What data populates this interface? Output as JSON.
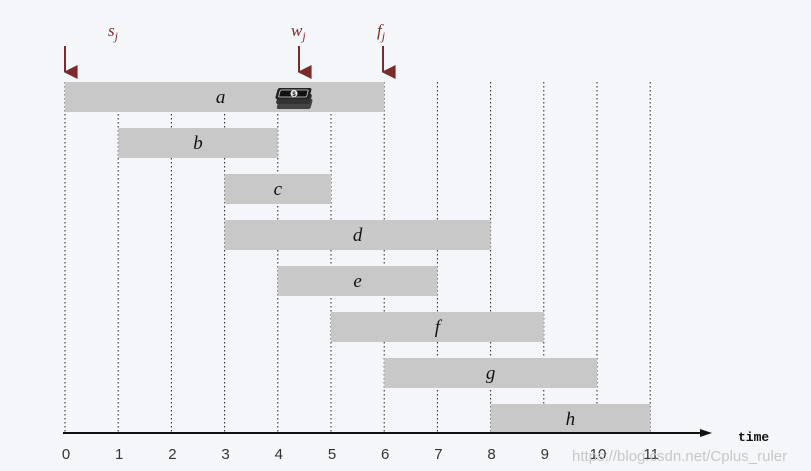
{
  "annotations": {
    "start": "s",
    "start_sub": "j",
    "weight": "w",
    "weight_sub": "j",
    "finish": "f",
    "finish_sub": "j"
  },
  "axis": {
    "label": "time",
    "ticks": [
      "0",
      "1",
      "2",
      "3",
      "4",
      "5",
      "6",
      "7",
      "8",
      "9",
      "10",
      "11"
    ]
  },
  "jobs": [
    {
      "label": "a",
      "start": 0,
      "finish": 6
    },
    {
      "label": "b",
      "start": 1,
      "finish": 4
    },
    {
      "label": "c",
      "start": 3,
      "finish": 5
    },
    {
      "label": "d",
      "start": 3,
      "finish": 8
    },
    {
      "label": "e",
      "start": 4,
      "finish": 7
    },
    {
      "label": "f",
      "start": 5,
      "finish": 9
    },
    {
      "label": "g",
      "start": 6,
      "finish": 10
    },
    {
      "label": "h",
      "start": 8,
      "finish": 11
    }
  ],
  "watermark": "https://blog.csdn.net/Cplus_ruler",
  "colors": {
    "bar": "#c8c8c8",
    "annotation": "#7b2b2b",
    "axis": "#111111"
  },
  "icons": {
    "money": "money-stack-icon"
  }
}
